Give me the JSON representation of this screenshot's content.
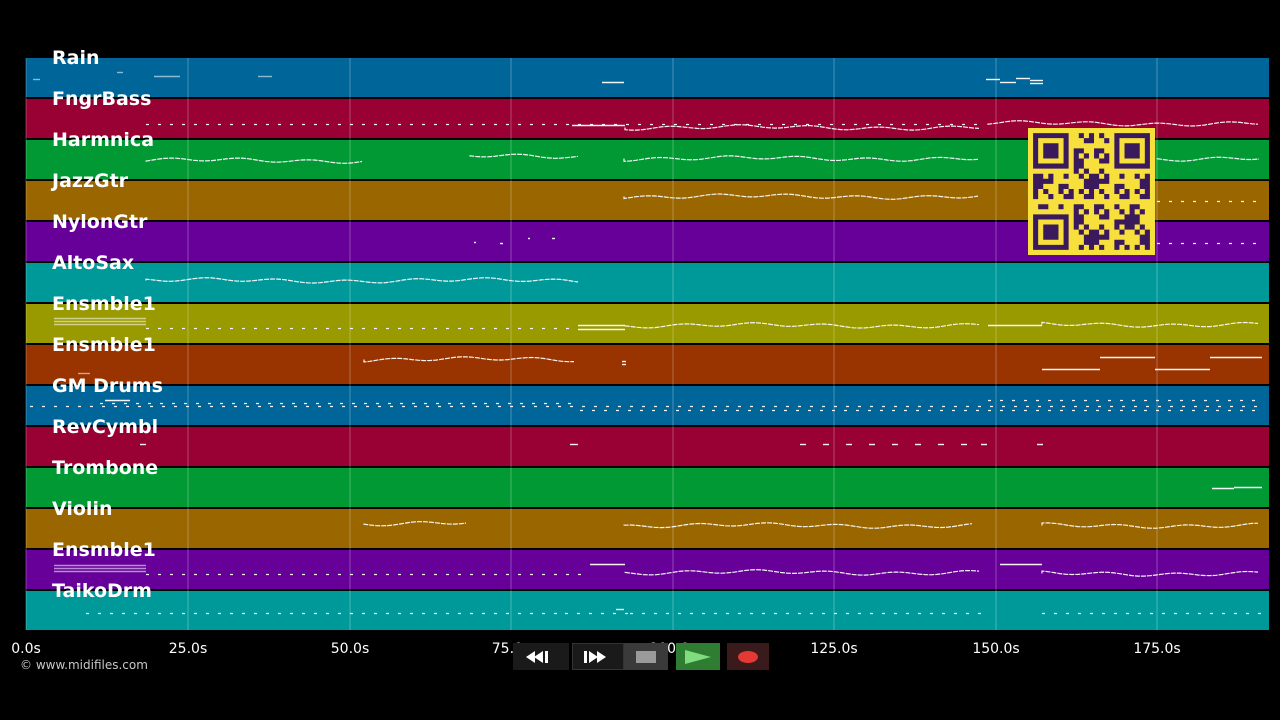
{
  "tracks": [
    {
      "name": "Rain",
      "color": "#006699",
      "notes": [
        [
          33,
          40,
          2,
          "l"
        ],
        [
          117,
          123,
          -5,
          "l"
        ],
        [
          154,
          180,
          -1,
          "l"
        ],
        [
          258,
          272,
          -1,
          "l"
        ],
        [
          602,
          624,
          5,
          "s"
        ],
        [
          986,
          1000,
          2,
          "s"
        ],
        [
          1000,
          1016,
          5,
          "s"
        ],
        [
          1016,
          1030,
          1,
          "s"
        ],
        [
          1030,
          1043,
          3,
          "s"
        ],
        [
          1030,
          1043,
          6,
          "s"
        ]
      ]
    },
    {
      "name": "FngrBass",
      "color": "#990033",
      "notes": [
        [
          146,
          980,
          6,
          "d"
        ],
        [
          572,
          625,
          7,
          "s"
        ],
        [
          625,
          980,
          9,
          "w"
        ],
        [
          988,
          1262,
          5,
          "w"
        ]
      ]
    },
    {
      "name": "Harmnica",
      "color": "#009933",
      "notes": [
        [
          146,
          364,
          1,
          "w"
        ],
        [
          470,
          578,
          -3,
          "w"
        ],
        [
          624,
          982,
          -1,
          "w"
        ],
        [
          1157,
          1263,
          -1,
          "w"
        ]
      ]
    },
    {
      "name": "JazzGtr",
      "color": "#996600",
      "notes": [
        [
          624,
          982,
          -4,
          "w"
        ],
        [
          1157,
          1262,
          1,
          "d"
        ]
      ]
    },
    {
      "name": "NylonGtr",
      "color": "#660099",
      "notes": [
        [
          474,
          476,
          1,
          "s"
        ],
        [
          500,
          503,
          2,
          "s"
        ],
        [
          528,
          530,
          -3,
          "s"
        ],
        [
          552,
          555,
          -3,
          "s"
        ],
        [
          1157,
          1262,
          2,
          "d"
        ]
      ]
    },
    {
      "name": "AltoSax",
      "color": "#009999",
      "notes": [
        [
          146,
          578,
          -2,
          "w"
        ]
      ]
    },
    {
      "name": "Ensmble1",
      "color": "#999900",
      "notes": [
        [
          54,
          146,
          -5,
          "l"
        ],
        [
          54,
          146,
          -2,
          "l"
        ],
        [
          54,
          146,
          1,
          "l"
        ],
        [
          146,
          578,
          5,
          "d"
        ],
        [
          578,
          625,
          2,
          "s"
        ],
        [
          578,
          625,
          6,
          "s"
        ],
        [
          625,
          982,
          2,
          "w"
        ],
        [
          988,
          1042,
          2,
          "s"
        ],
        [
          1042,
          1262,
          1,
          "w"
        ]
      ]
    },
    {
      "name": "Ensmble1",
      "color": "#993300",
      "notes": [
        [
          78,
          90,
          9,
          "l"
        ],
        [
          364,
          578,
          -5,
          "w"
        ],
        [
          622,
          626,
          -3,
          "s"
        ],
        [
          622,
          626,
          0,
          "s"
        ],
        [
          1042,
          1100,
          5,
          "s"
        ],
        [
          1100,
          1155,
          -7,
          "s"
        ],
        [
          1155,
          1210,
          5,
          "s"
        ],
        [
          1210,
          1262,
          -7,
          "s"
        ]
      ]
    },
    {
      "name": "GM Drums",
      "color": "#006699",
      "notes": [
        [
          30,
          1262,
          1,
          "d"
        ],
        [
          100,
          580,
          -2,
          "d"
        ],
        [
          580,
          1262,
          5,
          "d"
        ],
        [
          988,
          1262,
          -5,
          "d"
        ],
        [
          105,
          130,
          -5,
          "s"
        ]
      ]
    },
    {
      "name": "RevCymbl",
      "color": "#990033",
      "notes": [
        [
          140,
          146,
          -2,
          "s"
        ],
        [
          570,
          578,
          -2,
          "s"
        ],
        [
          800,
          806,
          -2,
          "s"
        ],
        [
          823,
          829,
          -2,
          "s"
        ],
        [
          846,
          852,
          -2,
          "s"
        ],
        [
          869,
          875,
          -2,
          "s"
        ],
        [
          892,
          898,
          -2,
          "s"
        ],
        [
          915,
          921,
          -2,
          "s"
        ],
        [
          938,
          944,
          -2,
          "s"
        ],
        [
          961,
          967,
          -2,
          "s"
        ],
        [
          981,
          987,
          -2,
          "s"
        ],
        [
          1037,
          1043,
          -2,
          "s"
        ]
      ]
    },
    {
      "name": "Trombone",
      "color": "#009933",
      "notes": [
        [
          1212,
          1234,
          1,
          "s"
        ],
        [
          1234,
          1262,
          0,
          "s"
        ]
      ]
    },
    {
      "name": "Violin",
      "color": "#996600",
      "notes": [
        [
          364,
          470,
          -5,
          "w"
        ],
        [
          624,
          975,
          -3,
          "w"
        ],
        [
          1042,
          1262,
          -3,
          "w"
        ]
      ]
    },
    {
      "name": "Ensmble1",
      "color": "#660099",
      "notes": [
        [
          54,
          146,
          -4,
          "l"
        ],
        [
          54,
          146,
          -1,
          "l"
        ],
        [
          54,
          146,
          2,
          "l"
        ],
        [
          146,
          585,
          5,
          "d"
        ],
        [
          590,
          625,
          -5,
          "s"
        ],
        [
          625,
          980,
          3,
          "w"
        ],
        [
          1000,
          1042,
          -5,
          "s"
        ],
        [
          1042,
          1262,
          4,
          "w"
        ]
      ]
    },
    {
      "name": "TaikoDrm",
      "color": "#009999",
      "notes": [
        [
          86,
          146,
          3,
          "d"
        ],
        [
          146,
          565,
          3,
          "d"
        ],
        [
          565,
          630,
          3,
          "d"
        ],
        [
          630,
          985,
          3,
          "d"
        ],
        [
          1042,
          1262,
          3,
          "d"
        ],
        [
          616,
          624,
          -1,
          "s"
        ]
      ]
    }
  ],
  "axis": {
    "ticks": [
      "0.0s",
      "25.0s",
      "50.0s",
      "75.0s",
      "100.0s",
      "125.0s",
      "150.0s",
      "175.0s"
    ]
  },
  "copyright": "© www.midifiles.com",
  "controls": [
    {
      "name": "rewind-button",
      "icon": "rewind-icon"
    },
    {
      "name": "fast-forward-button",
      "icon": "fast-forward-icon"
    },
    {
      "name": "stop-button",
      "icon": "stop-icon"
    },
    {
      "name": "play-button",
      "icon": "play-icon"
    },
    {
      "name": "record-button",
      "icon": "record-icon"
    }
  ]
}
